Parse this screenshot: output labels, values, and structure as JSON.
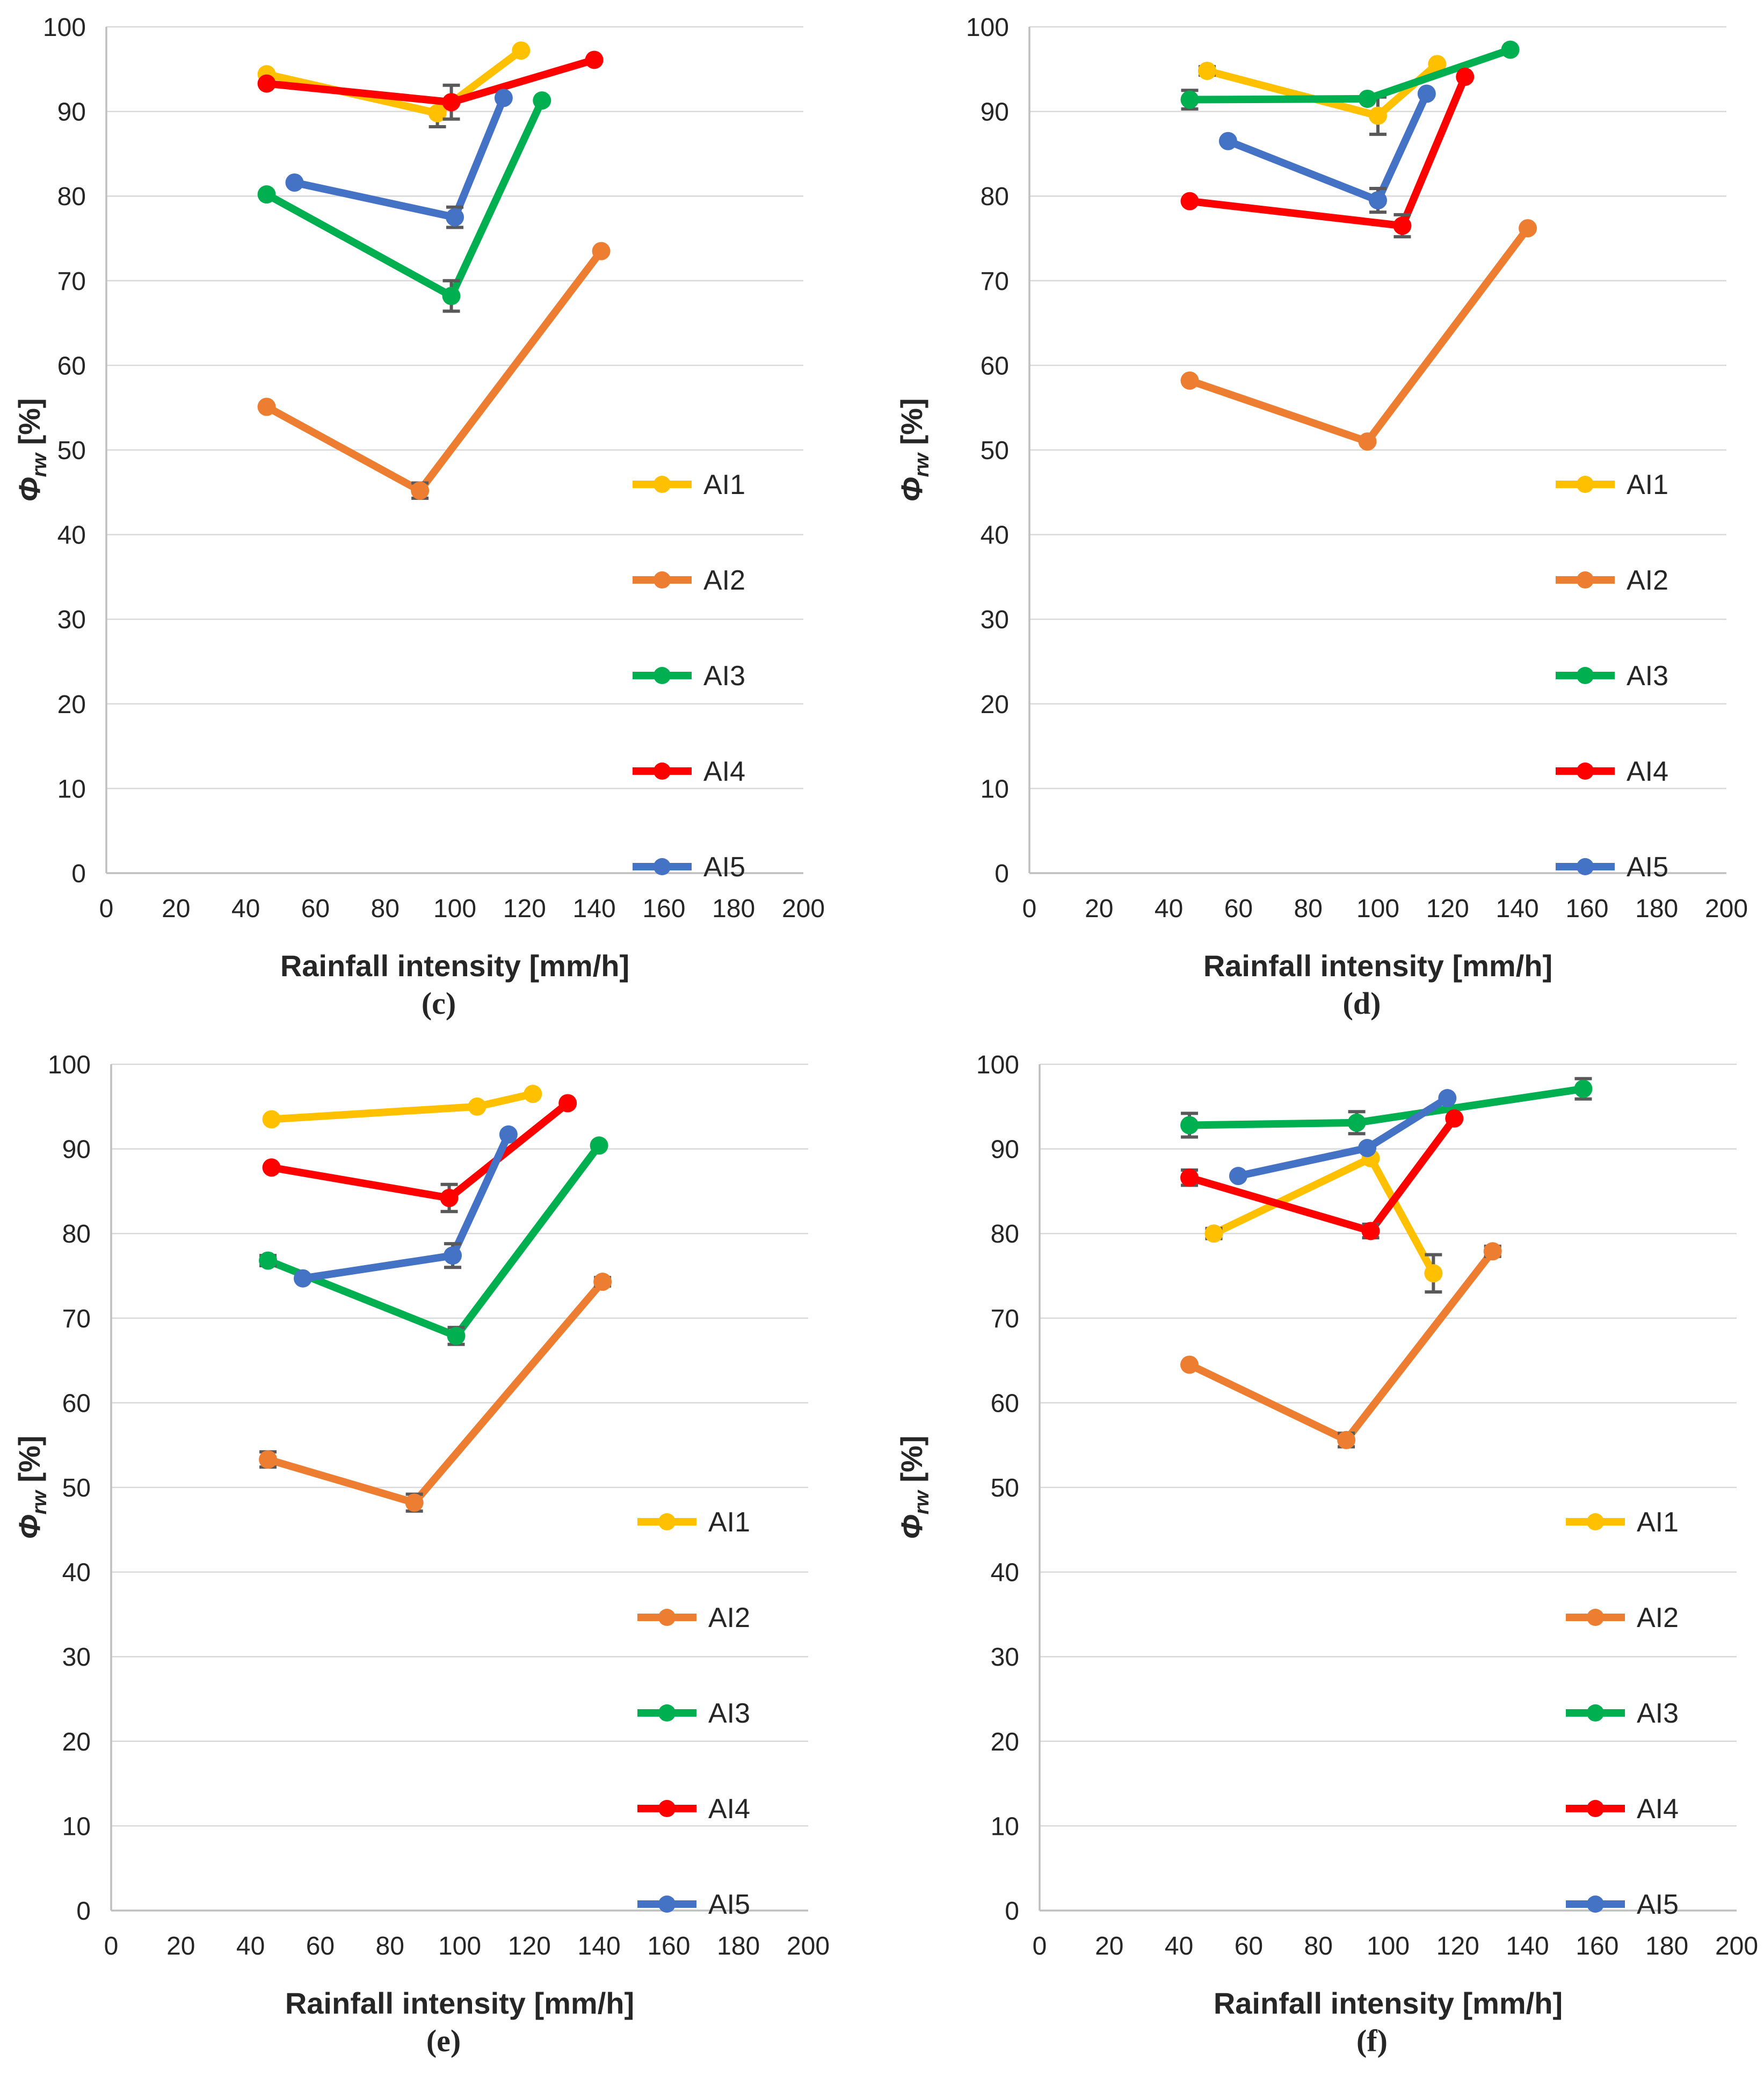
{
  "figure": {
    "background": "#FFFFFF",
    "grid_color": "#D9D9D9",
    "axis_color": "#BFBFBF",
    "error_bar_color": "#595959",
    "text_color": "#262626"
  },
  "axes_shared": {
    "x_title": "Rainfall intensity [mm/h]",
    "y_title_symbol": "Φ",
    "y_title_sub": "rw",
    "y_title_unit": " [%]",
    "x_ticks": [
      0,
      20,
      40,
      60,
      80,
      100,
      120,
      140,
      160,
      180,
      200
    ],
    "y_ticks": [
      0,
      10,
      20,
      30,
      40,
      50,
      60,
      70,
      80,
      90,
      100
    ]
  },
  "legend": {
    "labels": [
      "AI1",
      "AI2",
      "AI3",
      "AI4",
      "AI5"
    ],
    "colors": [
      "#FFC000",
      "#ED7D31",
      "#00B050",
      "#FF0000",
      "#4472C4"
    ]
  },
  "chart_data": [
    {
      "id": "c",
      "caption": "(c)",
      "type": "line",
      "title": "",
      "xlabel": "Rainfall intensity [mm/h]",
      "ylabel": "Φrw [%]",
      "xlim": [
        0,
        200
      ],
      "ylim": [
        0,
        100
      ],
      "grid": "horizontal",
      "legend_position": "inside-right",
      "series": [
        {
          "name": "AI1",
          "color": "#FFC000",
          "points": [
            {
              "x": 46,
              "y": 94.4,
              "err": 0
            },
            {
              "x": 95,
              "y": 89.8,
              "err": 1.6
            },
            {
              "x": 119,
              "y": 97.2,
              "err": 0
            }
          ]
        },
        {
          "name": "AI2",
          "color": "#ED7D31",
          "points": [
            {
              "x": 46,
              "y": 55.1,
              "err": 0
            },
            {
              "x": 90,
              "y": 45.2,
              "err": 0.9
            },
            {
              "x": 142,
              "y": 73.5,
              "err": 0
            }
          ]
        },
        {
          "name": "AI3",
          "color": "#00B050",
          "points": [
            {
              "x": 46,
              "y": 80.2,
              "err": 0
            },
            {
              "x": 99,
              "y": 68.2,
              "err": 1.8
            },
            {
              "x": 125,
              "y": 91.3,
              "err": 0
            }
          ]
        },
        {
          "name": "AI4",
          "color": "#FF0000",
          "points": [
            {
              "x": 46,
              "y": 93.3,
              "err": 0
            },
            {
              "x": 99,
              "y": 91.1,
              "err": 2.0
            },
            {
              "x": 140,
              "y": 96.1,
              "err": 0
            }
          ]
        },
        {
          "name": "AI5",
          "color": "#4472C4",
          "points": [
            {
              "x": 54,
              "y": 81.6,
              "err": 0
            },
            {
              "x": 100,
              "y": 77.5,
              "err": 1.2
            },
            {
              "x": 114,
              "y": 91.6,
              "err": 0
            }
          ]
        }
      ]
    },
    {
      "id": "d",
      "caption": "(d)",
      "type": "line",
      "title": "",
      "xlabel": "Rainfall intensity [mm/h]",
      "ylabel": "Φrw [%]",
      "xlim": [
        0,
        200
      ],
      "ylim": [
        0,
        100
      ],
      "grid": "horizontal",
      "legend_position": "inside-right",
      "series": [
        {
          "name": "AI1",
          "color": "#FFC000",
          "points": [
            {
              "x": 51,
              "y": 94.8,
              "err": 0.5
            },
            {
              "x": 100,
              "y": 89.5,
              "err": 2.2
            },
            {
              "x": 117,
              "y": 95.6,
              "err": 0
            }
          ]
        },
        {
          "name": "AI2",
          "color": "#ED7D31",
          "points": [
            {
              "x": 46,
              "y": 58.2,
              "err": 0
            },
            {
              "x": 97,
              "y": 51.0,
              "err": 0
            },
            {
              "x": 143,
              "y": 76.2,
              "err": 0
            }
          ]
        },
        {
          "name": "AI3",
          "color": "#00B050",
          "points": [
            {
              "x": 46,
              "y": 91.4,
              "err": 1.1
            },
            {
              "x": 97,
              "y": 91.5,
              "err": 0
            },
            {
              "x": 138,
              "y": 97.3,
              "err": 0
            }
          ]
        },
        {
          "name": "AI4",
          "color": "#FF0000",
          "points": [
            {
              "x": 46,
              "y": 79.4,
              "err": 0
            },
            {
              "x": 107,
              "y": 76.5,
              "err": 1.3
            },
            {
              "x": 125,
              "y": 94.1,
              "err": 0
            }
          ]
        },
        {
          "name": "AI5",
          "color": "#4472C4",
          "points": [
            {
              "x": 57,
              "y": 86.5,
              "err": 0
            },
            {
              "x": 100,
              "y": 79.5,
              "err": 1.4
            },
            {
              "x": 114,
              "y": 92.1,
              "err": 0
            }
          ]
        }
      ]
    },
    {
      "id": "e",
      "caption": "(e)",
      "type": "line",
      "title": "",
      "xlabel": "Rainfall intensity [mm/h]",
      "ylabel": "Φrw [%]",
      "xlim": [
        0,
        200
      ],
      "ylim": [
        0,
        100
      ],
      "grid": "horizontal",
      "legend_position": "inside-right",
      "series": [
        {
          "name": "AI1",
          "color": "#FFC000",
          "points": [
            {
              "x": 46,
              "y": 93.5,
              "err": 0
            },
            {
              "x": 105,
              "y": 95.0,
              "err": 0
            },
            {
              "x": 121,
              "y": 96.5,
              "err": 0
            }
          ]
        },
        {
          "name": "AI2",
          "color": "#ED7D31",
          "points": [
            {
              "x": 45,
              "y": 53.3,
              "err": 0.9
            },
            {
              "x": 87,
              "y": 48.2,
              "err": 1.0
            },
            {
              "x": 141,
              "y": 74.3,
              "err": 0.5
            }
          ]
        },
        {
          "name": "AI3",
          "color": "#00B050",
          "points": [
            {
              "x": 45,
              "y": 76.8,
              "err": 0.6
            },
            {
              "x": 99,
              "y": 67.9,
              "err": 1.0
            },
            {
              "x": 140,
              "y": 90.4,
              "err": 0
            }
          ]
        },
        {
          "name": "AI4",
          "color": "#FF0000",
          "points": [
            {
              "x": 46,
              "y": 87.8,
              "err": 0
            },
            {
              "x": 97,
              "y": 84.2,
              "err": 1.6
            },
            {
              "x": 131,
              "y": 95.4,
              "err": 0
            }
          ]
        },
        {
          "name": "AI5",
          "color": "#4472C4",
          "points": [
            {
              "x": 55,
              "y": 74.7,
              "err": 0
            },
            {
              "x": 98,
              "y": 77.4,
              "err": 1.4
            },
            {
              "x": 114,
              "y": 91.7,
              "err": 0
            }
          ]
        }
      ]
    },
    {
      "id": "f",
      "caption": "(f)",
      "type": "line",
      "title": "",
      "xlabel": "Rainfall intensity [mm/h]",
      "ylabel": "Φrw [%]",
      "xlim": [
        0,
        200
      ],
      "ylim": [
        0,
        100
      ],
      "grid": "horizontal",
      "legend_position": "inside-right",
      "series": [
        {
          "name": "AI1",
          "color": "#FFC000",
          "points": [
            {
              "x": 50,
              "y": 80.0,
              "err": 0.6
            },
            {
              "x": 95,
              "y": 88.9,
              "err": 0
            },
            {
              "x": 113,
              "y": 75.3,
              "err": 2.2
            }
          ]
        },
        {
          "name": "AI2",
          "color": "#ED7D31",
          "points": [
            {
              "x": 43,
              "y": 64.5,
              "err": 0
            },
            {
              "x": 88,
              "y": 55.6,
              "err": 0.8
            },
            {
              "x": 130,
              "y": 77.9,
              "err": 0.6
            }
          ]
        },
        {
          "name": "AI3",
          "color": "#00B050",
          "points": [
            {
              "x": 43,
              "y": 92.8,
              "err": 1.4
            },
            {
              "x": 91,
              "y": 93.1,
              "err": 1.3
            },
            {
              "x": 156,
              "y": 97.1,
              "err": 1.2
            }
          ]
        },
        {
          "name": "AI4",
          "color": "#FF0000",
          "points": [
            {
              "x": 43,
              "y": 86.6,
              "err": 0.9
            },
            {
              "x": 95,
              "y": 80.3,
              "err": 0.8
            },
            {
              "x": 119,
              "y": 93.6,
              "err": 0
            }
          ]
        },
        {
          "name": "AI5",
          "color": "#4472C4",
          "points": [
            {
              "x": 57,
              "y": 86.8,
              "err": 0
            },
            {
              "x": 94,
              "y": 90.1,
              "err": 0
            },
            {
              "x": 117,
              "y": 96.0,
              "err": 0
            }
          ]
        }
      ]
    }
  ]
}
